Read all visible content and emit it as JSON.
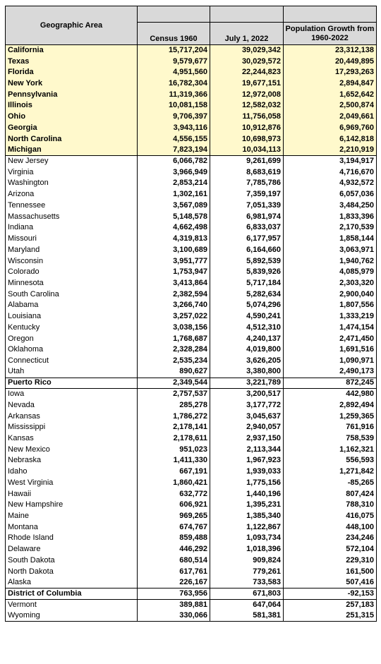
{
  "headers": {
    "area": "Geographic Area",
    "census1960": "Census 1960",
    "july2022": "July 1, 2022",
    "growth": "Population Growth from 1960-2022"
  },
  "rows": [
    {
      "area": "California",
      "c1960": "15,717,204",
      "c2022": "39,029,342",
      "growth": "23,312,138",
      "top10": true
    },
    {
      "area": "Texas",
      "c1960": "9,579,677",
      "c2022": "30,029,572",
      "growth": "20,449,895",
      "top10": true
    },
    {
      "area": "Florida",
      "c1960": "4,951,560",
      "c2022": "22,244,823",
      "growth": "17,293,263",
      "top10": true
    },
    {
      "area": "New York",
      "c1960": "16,782,304",
      "c2022": "19,677,151",
      "growth": "2,894,847",
      "top10": true
    },
    {
      "area": "Pennsylvania",
      "c1960": "11,319,366",
      "c2022": "12,972,008",
      "growth": "1,652,642",
      "top10": true
    },
    {
      "area": "Illinois",
      "c1960": "10,081,158",
      "c2022": "12,582,032",
      "growth": "2,500,874",
      "top10": true
    },
    {
      "area": "Ohio",
      "c1960": "9,706,397",
      "c2022": "11,756,058",
      "growth": "2,049,661",
      "top10": true
    },
    {
      "area": "Georgia",
      "c1960": "3,943,116",
      "c2022": "10,912,876",
      "growth": "6,969,760",
      "top10": true
    },
    {
      "area": "North Carolina",
      "c1960": "4,556,155",
      "c2022": "10,698,973",
      "growth": "6,142,818",
      "top10": true
    },
    {
      "area": "Michigan",
      "c1960": "7,823,194",
      "c2022": "10,034,113",
      "growth": "2,210,919",
      "top10": true
    },
    {
      "area": "New Jersey",
      "c1960": "6,066,782",
      "c2022": "9,261,699",
      "growth": "3,194,917",
      "sep": true
    },
    {
      "area": "Virginia",
      "c1960": "3,966,949",
      "c2022": "8,683,619",
      "growth": "4,716,670"
    },
    {
      "area": "Washington",
      "c1960": "2,853,214",
      "c2022": "7,785,786",
      "growth": "4,932,572"
    },
    {
      "area": "Arizona",
      "c1960": "1,302,161",
      "c2022": "7,359,197",
      "growth": "6,057,036"
    },
    {
      "area": "Tennessee",
      "c1960": "3,567,089",
      "c2022": "7,051,339",
      "growth": "3,484,250"
    },
    {
      "area": "Massachusetts",
      "c1960": "5,148,578",
      "c2022": "6,981,974",
      "growth": "1,833,396"
    },
    {
      "area": "Indiana",
      "c1960": "4,662,498",
      "c2022": "6,833,037",
      "growth": "2,170,539"
    },
    {
      "area": "Missouri",
      "c1960": "4,319,813",
      "c2022": "6,177,957",
      "growth": "1,858,144"
    },
    {
      "area": "Maryland",
      "c1960": "3,100,689",
      "c2022": "6,164,660",
      "growth": "3,063,971"
    },
    {
      "area": "Wisconsin",
      "c1960": "3,951,777",
      "c2022": "5,892,539",
      "growth": "1,940,762"
    },
    {
      "area": "Colorado",
      "c1960": "1,753,947",
      "c2022": "5,839,926",
      "growth": "4,085,979"
    },
    {
      "area": "Minnesota",
      "c1960": "3,413,864",
      "c2022": "5,717,184",
      "growth": "2,303,320"
    },
    {
      "area": "South Carolina",
      "c1960": "2,382,594",
      "c2022": "5,282,634",
      "growth": "2,900,040"
    },
    {
      "area": "Alabama",
      "c1960": "3,266,740",
      "c2022": "5,074,296",
      "growth": "1,807,556"
    },
    {
      "area": "Louisiana",
      "c1960": "3,257,022",
      "c2022": "4,590,241",
      "growth": "1,333,219"
    },
    {
      "area": "Kentucky",
      "c1960": "3,038,156",
      "c2022": "4,512,310",
      "growth": "1,474,154"
    },
    {
      "area": "Oregon",
      "c1960": "1,768,687",
      "c2022": "4,240,137",
      "growth": "2,471,450"
    },
    {
      "area": "Oklahoma",
      "c1960": "2,328,284",
      "c2022": "4,019,800",
      "growth": "1,691,516"
    },
    {
      "area": "Connecticut",
      "c1960": "2,535,234",
      "c2022": "3,626,205",
      "growth": "1,090,971"
    },
    {
      "area": "Utah",
      "c1960": "890,627",
      "c2022": "3,380,800",
      "growth": "2,490,173"
    },
    {
      "area": "Puerto Rico",
      "c1960": "2,349,544",
      "c2022": "3,221,789",
      "growth": "872,245",
      "sep": true,
      "special": true
    },
    {
      "area": "Iowa",
      "c1960": "2,757,537",
      "c2022": "3,200,517",
      "growth": "442,980",
      "sep": true
    },
    {
      "area": "Nevada",
      "c1960": "285,278",
      "c2022": "3,177,772",
      "growth": "2,892,494"
    },
    {
      "area": "Arkansas",
      "c1960": "1,786,272",
      "c2022": "3,045,637",
      "growth": "1,259,365"
    },
    {
      "area": "Mississippi",
      "c1960": "2,178,141",
      "c2022": "2,940,057",
      "growth": "761,916"
    },
    {
      "area": "Kansas",
      "c1960": "2,178,611",
      "c2022": "2,937,150",
      "growth": "758,539"
    },
    {
      "area": "New Mexico",
      "c1960": "951,023",
      "c2022": "2,113,344",
      "growth": "1,162,321"
    },
    {
      "area": "Nebraska",
      "c1960": "1,411,330",
      "c2022": "1,967,923",
      "growth": "556,593"
    },
    {
      "area": "Idaho",
      "c1960": "667,191",
      "c2022": "1,939,033",
      "growth": "1,271,842"
    },
    {
      "area": "West Virginia",
      "c1960": "1,860,421",
      "c2022": "1,775,156",
      "growth": "-85,265"
    },
    {
      "area": "Hawaii",
      "c1960": "632,772",
      "c2022": "1,440,196",
      "growth": "807,424"
    },
    {
      "area": "New Hampshire",
      "c1960": "606,921",
      "c2022": "1,395,231",
      "growth": "788,310"
    },
    {
      "area": "Maine",
      "c1960": "969,265",
      "c2022": "1,385,340",
      "growth": "416,075"
    },
    {
      "area": "Montana",
      "c1960": "674,767",
      "c2022": "1,122,867",
      "growth": "448,100"
    },
    {
      "area": "Rhode Island",
      "c1960": "859,488",
      "c2022": "1,093,734",
      "growth": "234,246"
    },
    {
      "area": "Delaware",
      "c1960": "446,292",
      "c2022": "1,018,396",
      "growth": "572,104"
    },
    {
      "area": "South Dakota",
      "c1960": "680,514",
      "c2022": "909,824",
      "growth": "229,310"
    },
    {
      "area": "North Dakota",
      "c1960": "617,761",
      "c2022": "779,261",
      "growth": "161,500"
    },
    {
      "area": "Alaska",
      "c1960": "226,167",
      "c2022": "733,583",
      "growth": "507,416"
    },
    {
      "area": "District of Columbia",
      "c1960": "763,956",
      "c2022": "671,803",
      "growth": "-92,153",
      "sep": true,
      "special": true
    },
    {
      "area": "Vermont",
      "c1960": "389,881",
      "c2022": "647,064",
      "growth": "257,183",
      "sep": true
    },
    {
      "area": "Wyoming",
      "c1960": "330,066",
      "c2022": "581,381",
      "growth": "251,315",
      "last": true
    }
  ]
}
